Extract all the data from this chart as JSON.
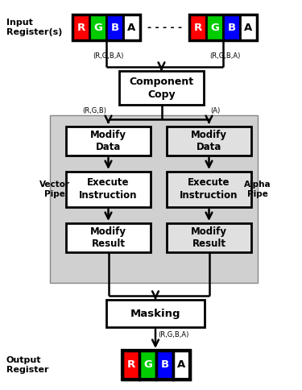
{
  "fig_width": 3.75,
  "fig_height": 4.84,
  "bg_color": "#ffffff",
  "gray_bg": "#d0d0d0",
  "box_face_white": "#ffffff",
  "box_face_gray": "#e0e0e0",
  "box_edge": "#000000",
  "arrow_color": "#000000",
  "rgb_colors": [
    "#ff0000",
    "#00cc00",
    "#0000ff",
    "#ffffff"
  ],
  "rgb_labels": [
    "R",
    "G",
    "B",
    "A"
  ],
  "input_label": "Input\nRegister(s)",
  "output_label": "Output\nRegister",
  "vector_pipe_label": "Vector\nPipe",
  "alpha_pipe_label": "Alpha\nPipe",
  "component_copy_label": "Component\nCopy",
  "modify_data_label": "Modify\nData",
  "execute_label": "Execute\nInstruction",
  "modify_result_label": "Modify\nResult",
  "masking_label": "Masking",
  "dots": "- - - - -",
  "label_rgba1": "(R,G,B,A)",
  "label_rgba2": "(R,G,B,A)",
  "label_rgb": "(R,G,B)",
  "label_a": "(A)",
  "label_rgba_out": "(R,G,B,A)"
}
